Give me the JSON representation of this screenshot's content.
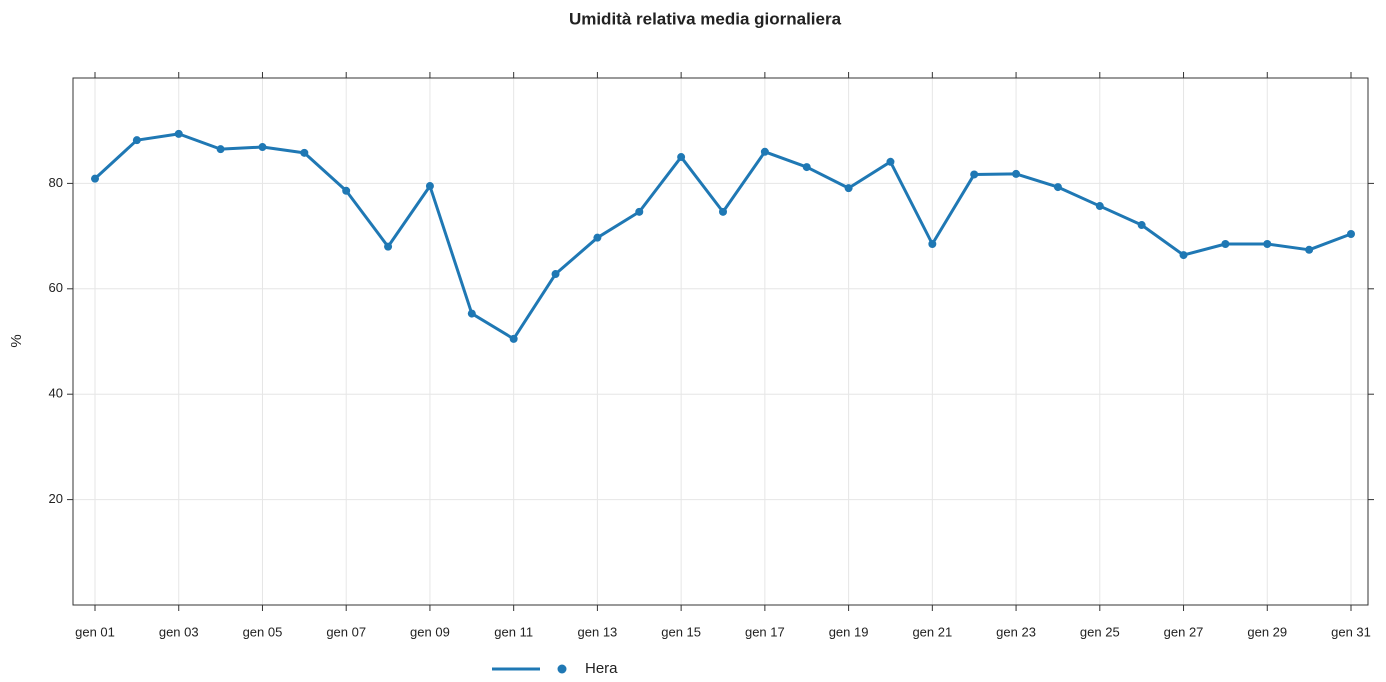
{
  "chart_data": {
    "type": "line",
    "title": "Umidità relativa media giornaliera",
    "y_label": "%",
    "categories": [
      "gen 01",
      null,
      "gen 03",
      null,
      "gen 05",
      null,
      "gen 07",
      null,
      "gen 09",
      null,
      "gen 11",
      null,
      "gen 13",
      null,
      "gen 15",
      null,
      "gen 17",
      null,
      "gen 19",
      null,
      "gen 21",
      null,
      "gen 23",
      null,
      "gen 25",
      null,
      "gen 27",
      null,
      "gen 29",
      null,
      "gen 31"
    ],
    "series": [
      {
        "name": "Hera",
        "color": "#1f78b4",
        "values": [
          80.9,
          88.2,
          89.4,
          86.5,
          86.9,
          85.8,
          78.6,
          68.0,
          79.5,
          55.3,
          50.5,
          62.8,
          69.7,
          74.6,
          85.0,
          74.6,
          86.0,
          83.1,
          79.1,
          84.1,
          68.5,
          81.7,
          81.8,
          79.3,
          75.7,
          72.1,
          66.4,
          68.5,
          68.5,
          67.4,
          70.4
        ]
      }
    ],
    "ylim": [
      0,
      100
    ],
    "yticks": [
      20,
      40,
      60,
      80
    ],
    "grid": true,
    "legend": "bottom"
  }
}
